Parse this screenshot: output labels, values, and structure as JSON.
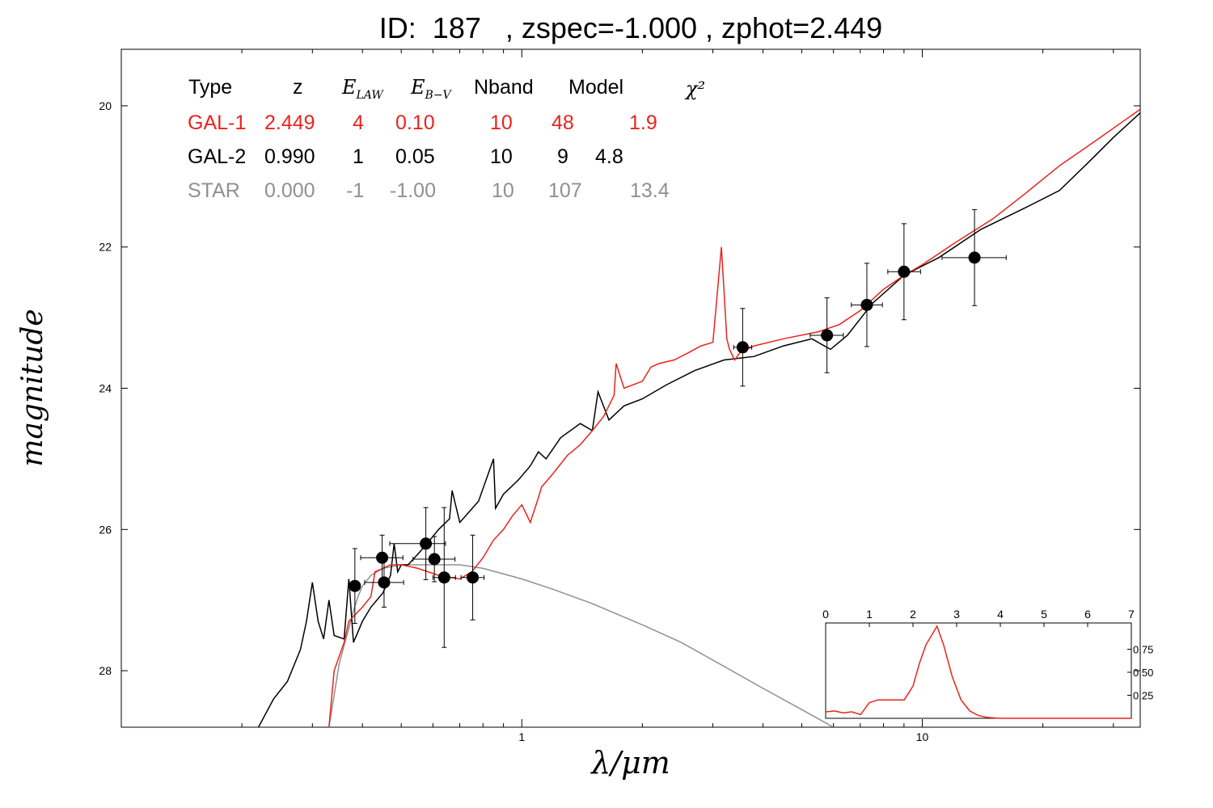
{
  "title": "ID:  187   , zspec=-1.000 , zphot=2.449",
  "colors": {
    "gal1": "#e8241f",
    "gal2": "#000000",
    "star": "#909090",
    "points": "#000000"
  },
  "legend_table": {
    "headers": [
      "Type",
      "z",
      "E_LAW",
      "E_B-V",
      "Nband",
      "Model",
      "χ²"
    ],
    "rows": [
      {
        "type": "GAL-1",
        "z": "2.449",
        "elaw": "4",
        "ebv": "0.10",
        "nband": "10",
        "model": "48",
        "chi2": "1.9"
      },
      {
        "type": "GAL-2",
        "z": "0.990",
        "elaw": "1",
        "ebv": "0.05",
        "nband": "10",
        "model": "9",
        "chi2": "4.8"
      },
      {
        "type": "STAR",
        "z": "0.000",
        "elaw": "-1",
        "ebv": "-1.00",
        "nband": "10",
        "model": "107",
        "chi2": "13.4"
      }
    ]
  },
  "chart_data": [
    {
      "type": "scatter",
      "xlabel": "λ/μm",
      "ylabel": "magnitude",
      "xscale": "log",
      "xlim": [
        0.1,
        35
      ],
      "ylim": [
        28.8,
        19.2
      ],
      "xticks": [
        1,
        10
      ],
      "yticks": [
        20,
        22,
        24,
        26,
        28
      ],
      "points": [
        {
          "x": 0.383,
          "y": 26.8,
          "xerr": [
            0.372,
            0.394
          ],
          "yerr": [
            26.27,
            27.33
          ]
        },
        {
          "x": 0.448,
          "y": 26.4,
          "xerr": [
            0.396,
            0.505
          ],
          "yerr": [
            26.08,
            26.72
          ]
        },
        {
          "x": 0.453,
          "y": 26.75,
          "xerr": [
            0.405,
            0.507
          ],
          "yerr": [
            26.4,
            27.1
          ]
        },
        {
          "x": 0.576,
          "y": 26.2,
          "xerr": [
            0.468,
            0.645
          ],
          "yerr": [
            25.69,
            26.71
          ]
        },
        {
          "x": 0.605,
          "y": 26.42,
          "xerr": [
            0.535,
            0.681
          ],
          "yerr": [
            26.1,
            26.74
          ]
        },
        {
          "x": 0.64,
          "y": 26.68,
          "xerr": [
            0.6,
            0.683
          ],
          "yerr": [
            25.69,
            27.67
          ]
        },
        {
          "x": 0.754,
          "y": 26.68,
          "xerr": [
            0.705,
            0.805
          ],
          "yerr": [
            26.08,
            27.28
          ]
        },
        {
          "x": 3.56,
          "y": 23.42,
          "xerr": [
            3.38,
            3.75
          ],
          "yerr": [
            22.87,
            23.97
          ]
        },
        {
          "x": 5.78,
          "y": 23.25,
          "xerr": [
            5.25,
            6.35
          ],
          "yerr": [
            22.72,
            23.78
          ]
        },
        {
          "x": 7.27,
          "y": 22.82,
          "xerr": [
            6.65,
            7.95
          ],
          "yerr": [
            22.23,
            23.41
          ]
        },
        {
          "x": 9.0,
          "y": 22.35,
          "xerr": [
            8.2,
            9.9
          ],
          "yerr": [
            21.67,
            23.03
          ]
        },
        {
          "x": 13.5,
          "y": 22.15,
          "xerr": [
            11.2,
            16.2
          ],
          "yerr": [
            21.47,
            22.83
          ]
        }
      ],
      "series": [
        {
          "name": "GAL-2",
          "color": "#000000",
          "x": [
            0.22,
            0.24,
            0.26,
            0.28,
            0.29,
            0.3,
            0.31,
            0.32,
            0.33,
            0.34,
            0.36,
            0.37,
            0.38,
            0.4,
            0.42,
            0.45,
            0.47,
            0.48,
            0.49,
            0.5,
            0.52,
            0.55,
            0.58,
            0.62,
            0.66,
            0.67,
            0.7,
            0.78,
            0.85,
            0.86,
            0.9,
            0.98,
            1.05,
            1.1,
            1.15,
            1.25,
            1.4,
            1.5,
            1.55,
            1.65,
            1.8,
            2.0,
            2.3,
            2.7,
            3.2,
            3.8,
            4.5,
            5.3,
            5.9,
            6.5,
            7.5,
            9.0,
            11.0,
            14.0,
            18.0,
            22.0,
            26.0,
            30.0,
            35.0
          ],
          "y": [
            28.8,
            28.4,
            28.15,
            27.7,
            27.3,
            26.75,
            27.3,
            27.55,
            27.0,
            27.5,
            27.55,
            26.7,
            27.6,
            27.3,
            27.1,
            26.9,
            26.65,
            26.2,
            26.6,
            26.5,
            26.5,
            26.35,
            26.2,
            26.0,
            25.85,
            25.45,
            25.9,
            25.6,
            25.0,
            25.7,
            25.5,
            25.3,
            25.1,
            24.9,
            25.0,
            24.7,
            24.5,
            24.6,
            24.05,
            24.45,
            24.25,
            24.15,
            23.95,
            23.75,
            23.6,
            23.55,
            23.4,
            23.3,
            23.45,
            23.25,
            22.8,
            22.4,
            22.15,
            21.75,
            21.45,
            21.2,
            20.8,
            20.45,
            20.1
          ]
        },
        {
          "name": "GAL-1",
          "color": "#e8241f",
          "x": [
            0.33,
            0.34,
            0.36,
            0.37,
            0.4,
            0.42,
            0.43,
            0.45,
            0.47,
            0.5,
            0.55,
            0.62,
            0.7,
            0.75,
            0.8,
            0.85,
            0.9,
            0.95,
            1.0,
            1.05,
            1.1,
            1.12,
            1.2,
            1.3,
            1.4,
            1.5,
            1.6,
            1.7,
            1.72,
            1.8,
            2.0,
            2.1,
            2.2,
            2.4,
            2.6,
            2.8,
            3.0,
            3.15,
            3.25,
            3.3,
            3.4,
            3.5,
            3.8,
            4.5,
            5.5,
            6.2,
            7.0,
            8.0,
            9.0,
            10.0,
            12.0,
            15.0,
            18.0,
            22.0,
            27.0,
            35.0
          ],
          "y": [
            28.8,
            28.0,
            27.6,
            27.3,
            27.1,
            26.95,
            26.6,
            26.55,
            26.5,
            26.5,
            26.55,
            26.65,
            26.7,
            26.6,
            26.4,
            26.15,
            26.0,
            25.8,
            25.65,
            25.9,
            25.55,
            25.4,
            25.2,
            24.95,
            24.8,
            24.6,
            24.4,
            24.1,
            23.65,
            24.0,
            23.9,
            23.7,
            23.65,
            23.6,
            23.5,
            23.4,
            23.35,
            22.0,
            23.3,
            23.45,
            23.6,
            23.5,
            23.4,
            23.3,
            23.2,
            23.1,
            22.9,
            22.6,
            22.4,
            22.25,
            21.95,
            21.6,
            21.25,
            20.85,
            20.5,
            20.05
          ]
        },
        {
          "name": "STAR",
          "color": "#909090",
          "x": [
            0.33,
            0.35,
            0.37,
            0.38,
            0.39,
            0.4,
            0.42,
            0.45,
            0.5,
            0.6,
            0.7,
            0.8,
            1.0,
            1.2,
            1.5,
            2.0,
            2.5,
            3.0,
            4.0,
            5.0,
            6.0
          ],
          "y": [
            28.8,
            27.9,
            27.4,
            27.15,
            26.95,
            26.8,
            26.65,
            26.55,
            26.5,
            26.5,
            26.5,
            26.55,
            26.7,
            26.85,
            27.05,
            27.35,
            27.6,
            27.85,
            28.25,
            28.55,
            28.8
          ]
        }
      ]
    },
    {
      "type": "line",
      "xlim": [
        0,
        7
      ],
      "ylim": [
        0,
        1
      ],
      "xticks": [
        0,
        1,
        2,
        3,
        4,
        5,
        6,
        7
      ],
      "yticks": [
        0.25,
        0.5,
        0.75
      ],
      "series": [
        {
          "color": "#e8241f",
          "x": [
            0,
            0.2,
            0.4,
            0.6,
            0.8,
            1.0,
            1.2,
            1.4,
            1.6,
            1.8,
            2.0,
            2.15,
            2.3,
            2.45,
            2.55,
            2.7,
            2.9,
            3.1,
            3.3,
            3.5,
            3.7,
            4.0,
            5.0,
            6.0,
            7.0
          ],
          "y": [
            0.07,
            0.08,
            0.06,
            0.07,
            0.04,
            0.17,
            0.2,
            0.2,
            0.2,
            0.2,
            0.35,
            0.6,
            0.8,
            0.92,
            1.0,
            0.8,
            0.45,
            0.2,
            0.08,
            0.03,
            0.01,
            0.0,
            0.0,
            0.0,
            0.0
          ]
        }
      ]
    }
  ]
}
